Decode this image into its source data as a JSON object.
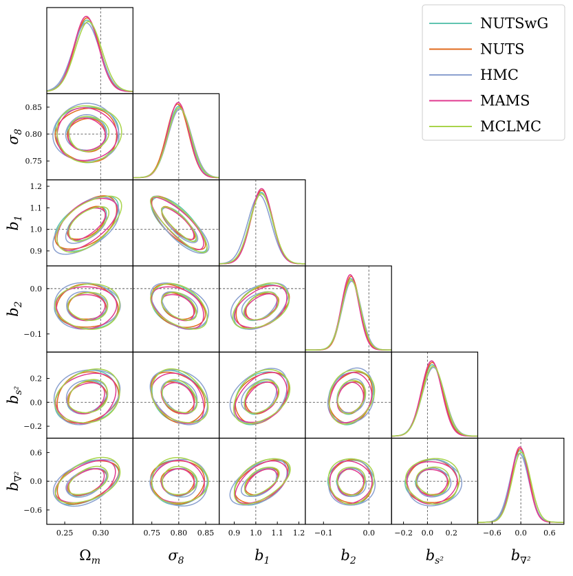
{
  "chart_data": {
    "type": "corner",
    "title": "",
    "parameters": [
      {
        "key": "om",
        "label_main": "Ω",
        "label_sub": "m",
        "range": [
          0.225,
          0.345
        ],
        "ticks": [
          0.25,
          0.3
        ],
        "tick_labels": [
          "0.25",
          "0.30"
        ],
        "truth": 0.3,
        "mean": 0.281,
        "sd": 0.018
      },
      {
        "key": "s8",
        "label_main": "σ",
        "label_sub": "8",
        "range": [
          0.715,
          0.875
        ],
        "ticks": [
          0.75,
          0.8,
          0.85
        ],
        "tick_labels": [
          "0.75",
          "0.80",
          "0.85"
        ],
        "truth": 0.8,
        "mean": 0.8,
        "sd": 0.021
      },
      {
        "key": "b1",
        "label_main": "b",
        "label_sub": "1",
        "range": [
          0.83,
          1.23
        ],
        "ticks": [
          0.9,
          1.0,
          1.1,
          1.2
        ],
        "tick_labels": [
          "0.9",
          "1.0",
          "1.1",
          "1.2"
        ],
        "truth": 1.0,
        "mean": 1.025,
        "sd": 0.052
      },
      {
        "key": "b2",
        "label_main": "b",
        "label_sub": "2",
        "range": [
          -0.14,
          0.05
        ],
        "ticks": [
          -0.1,
          0.0
        ],
        "tick_labels": [
          "−0.1",
          "0.0"
        ],
        "truth": 0.0,
        "mean": -0.04,
        "sd": 0.02
      },
      {
        "key": "bs2",
        "label_main": "b",
        "label_sub": "s²",
        "range": [
          -0.3,
          0.42
        ],
        "ticks": [
          -0.2,
          0.0,
          0.2
        ],
        "tick_labels": [
          "−0.2",
          "0.0",
          "0.2"
        ],
        "truth": 0.0,
        "mean": 0.04,
        "sd": 0.09
      },
      {
        "key": "bnab",
        "label_main": "b",
        "label_sub": "∇²",
        "range": [
          -0.9,
          0.9
        ],
        "ticks": [
          -0.6,
          0.0,
          0.6
        ],
        "tick_labels": [
          "−0.6",
          "0.0",
          "0.6"
        ],
        "truth": 0.0,
        "mean": -0.02,
        "sd": 0.19
      }
    ],
    "correlations": [
      [
        1.0,
        0.0,
        0.55,
        0.0,
        0.2,
        0.45
      ],
      [
        0.0,
        1.0,
        -0.8,
        -0.4,
        -0.3,
        0.0
      ],
      [
        0.55,
        -0.8,
        1.0,
        0.4,
        0.35,
        0.5
      ],
      [
        0.0,
        -0.4,
        0.4,
        1.0,
        0.2,
        0.0
      ],
      [
        0.2,
        -0.3,
        0.35,
        0.2,
        1.0,
        0.0
      ],
      [
        0.45,
        0.0,
        0.5,
        0.0,
        0.0,
        1.0
      ]
    ],
    "contour_levels": [
      0.68,
      0.95
    ],
    "series": [
      {
        "name": "NUTSwG",
        "color": "#5fc4b0",
        "mean_shift": [
          0.0,
          0.0,
          0.0,
          0.0,
          0.0,
          0.0
        ],
        "scale": 1.0
      },
      {
        "name": "NUTS",
        "color": "#e06a1c",
        "mean_shift": [
          0.0,
          -0.002,
          0.003,
          0.001,
          0.0,
          0.01
        ],
        "scale": 0.97
      },
      {
        "name": "HMC",
        "color": "#8aa0cf",
        "mean_shift": [
          -0.001,
          0.002,
          -0.008,
          0.002,
          0.01,
          -0.01
        ],
        "scale": 1.04
      },
      {
        "name": "MAMS",
        "color": "#e0388f",
        "mean_shift": [
          -0.001,
          -0.001,
          0.002,
          -0.001,
          -0.005,
          0.0
        ],
        "scale": 0.95
      },
      {
        "name": "MCLMC",
        "color": "#a8d44a",
        "mean_shift": [
          0.002,
          0.001,
          0.001,
          0.001,
          0.008,
          0.03
        ],
        "scale": 1.02
      }
    ],
    "legend": {
      "placement": "top-right",
      "entries": [
        "NUTSwG",
        "NUTS",
        "HMC",
        "MAMS",
        "MCLMC"
      ]
    }
  }
}
